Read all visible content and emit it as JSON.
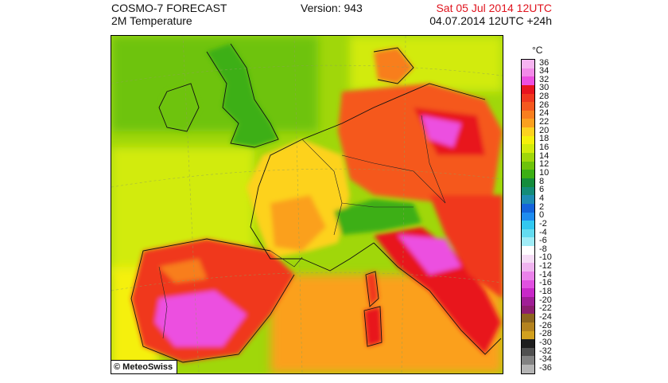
{
  "header": {
    "title": "COSMO-7 FORECAST",
    "subtitle": "2M Temperature",
    "version": "Version: 943",
    "valid_time": "Sat 05 Jul 2014 12UTC",
    "run_time": "04.07.2014 12UTC +24h"
  },
  "map": {
    "credit": "© MeteoSwiss"
  },
  "legend": {
    "unit": "°C",
    "levels": [
      {
        "label": "36",
        "color": "#f6b4f0"
      },
      {
        "label": "34",
        "color": "#f28ae8"
      },
      {
        "label": "32",
        "color": "#ec4fe0"
      },
      {
        "label": "30",
        "color": "#e8141e"
      },
      {
        "label": "28",
        "color": "#f0371e"
      },
      {
        "label": "26",
        "color": "#f5581e"
      },
      {
        "label": "24",
        "color": "#f87e1e"
      },
      {
        "label": "22",
        "color": "#fba01e"
      },
      {
        "label": "20",
        "color": "#fdd21e"
      },
      {
        "label": "18",
        "color": "#f5f00a"
      },
      {
        "label": "16",
        "color": "#d2eb0a"
      },
      {
        "label": "14",
        "color": "#a0d70a"
      },
      {
        "label": "12",
        "color": "#6ec30a"
      },
      {
        "label": "10",
        "color": "#3caf14"
      },
      {
        "label": "8",
        "color": "#148c3c"
      },
      {
        "label": "6",
        "color": "#148c78"
      },
      {
        "label": "4",
        "color": "#1e8cb4"
      },
      {
        "label": "2",
        "color": "#1464dc"
      },
      {
        "label": "0",
        "color": "#1e8cf0"
      },
      {
        "label": "-2",
        "color": "#32c8f0"
      },
      {
        "label": "-4",
        "color": "#64dcf0"
      },
      {
        "label": "-6",
        "color": "#a0ecf6"
      },
      {
        "label": "-8",
        "color": "#ffffff"
      },
      {
        "label": "-10",
        "color": "#f6dcf6"
      },
      {
        "label": "-12",
        "color": "#f0b4f0"
      },
      {
        "label": "-14",
        "color": "#ea82ea"
      },
      {
        "label": "-16",
        "color": "#e050e0"
      },
      {
        "label": "-18",
        "color": "#c828c8"
      },
      {
        "label": "-20",
        "color": "#a01e96"
      },
      {
        "label": "-22",
        "color": "#8c1e6e"
      },
      {
        "label": "-24",
        "color": "#8c641e"
      },
      {
        "label": "-26",
        "color": "#b4821e"
      },
      {
        "label": "-28",
        "color": "#d2a01e"
      },
      {
        "label": "-30",
        "color": "#1e1e1e"
      },
      {
        "label": "-32",
        "color": "#505050"
      },
      {
        "label": "-34",
        "color": "#828282"
      },
      {
        "label": "-36",
        "color": "#b4b4b4"
      }
    ]
  }
}
